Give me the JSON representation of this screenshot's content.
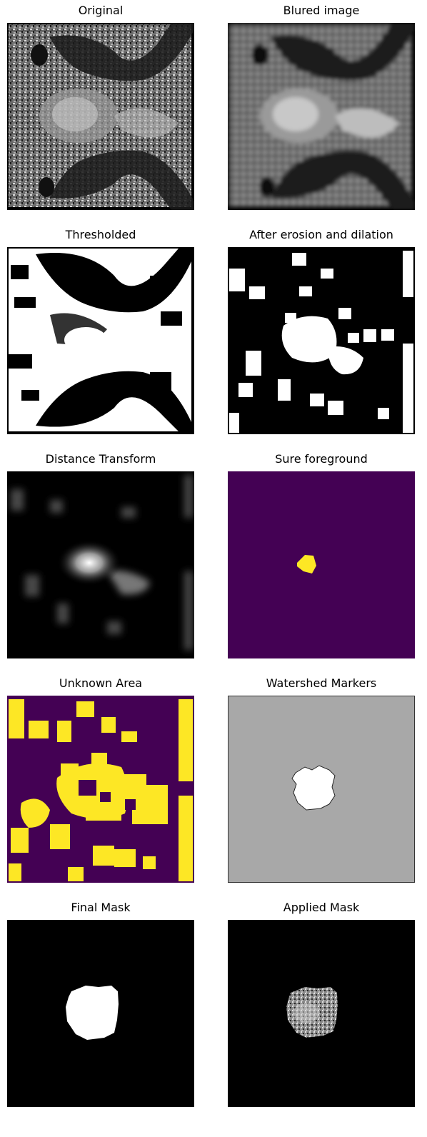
{
  "figure": {
    "panels": [
      {
        "title": "Original",
        "image": "grayscale-pelvic-mri-scan"
      },
      {
        "title": "Blured image",
        "image": "blurred-grayscale-pelvic-mri-scan"
      },
      {
        "title": "Thresholded",
        "image": "binary-thresholded-scan"
      },
      {
        "title": "After erosion and dilation",
        "image": "morphologically-cleaned-binary-mask"
      },
      {
        "title": "Distance Transform",
        "image": "grayscale-distance-transform-map"
      },
      {
        "title": "Sure foreground",
        "image": "purple-background-yellow-foreground-blob"
      },
      {
        "title": "Unknown Area",
        "image": "purple-background-yellow-unknown-regions"
      },
      {
        "title": "Watershed Markers",
        "image": "gray-background-white-marker-region"
      },
      {
        "title": "Final Mask",
        "image": "black-background-white-mask-region"
      },
      {
        "title": "Applied Mask",
        "image": "masked-grayscale-tissue-region"
      }
    ],
    "colors": {
      "background": "#ffffff",
      "viridis_low": "#440154",
      "viridis_high": "#fde725",
      "marker_gray": "#a8a8a8"
    }
  }
}
